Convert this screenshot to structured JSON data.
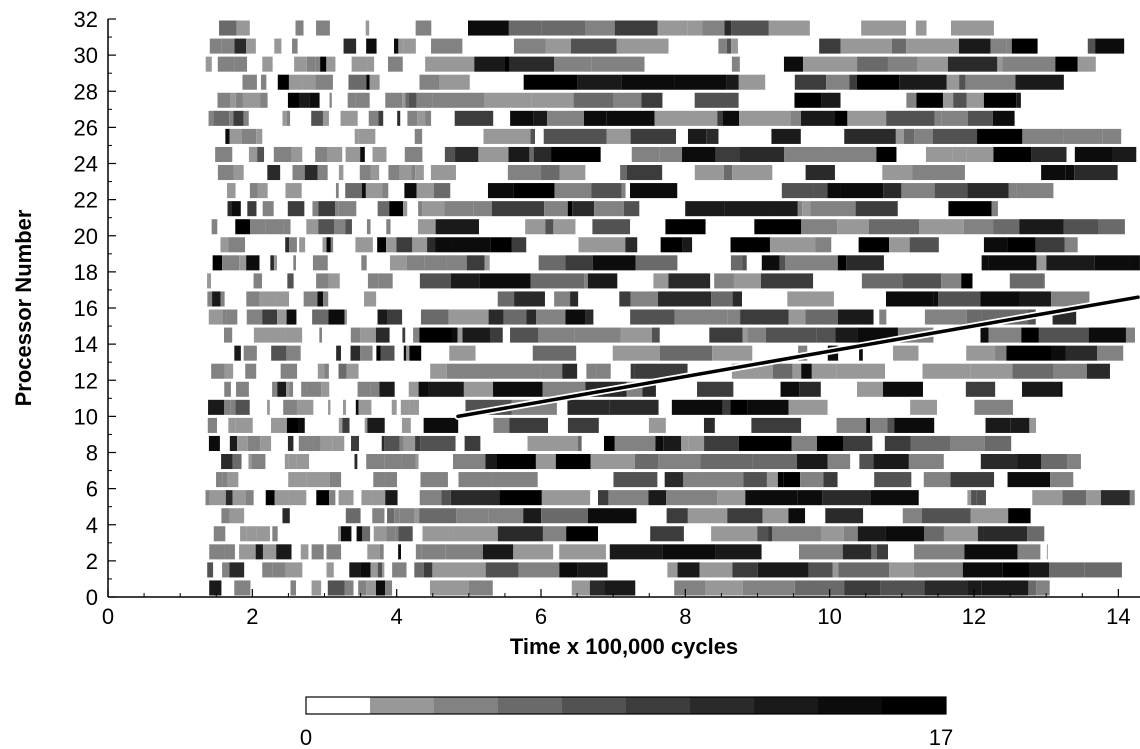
{
  "chart_data": {
    "type": "heatmap",
    "xlabel": "Time x 100,000 cycles",
    "ylabel": "Processor Number",
    "xlim": [
      0,
      14.3
    ],
    "ylim": [
      0,
      32
    ],
    "x_ticks": [
      0,
      2,
      4,
      6,
      8,
      10,
      12,
      14
    ],
    "y_ticks": [
      0,
      2,
      4,
      6,
      8,
      10,
      12,
      14,
      16,
      18,
      20,
      22,
      24,
      26,
      28,
      30,
      32
    ],
    "rows": 32,
    "row_data_start_time": 1.35,
    "row_data_end_time_range": [
      12.5,
      14.3
    ],
    "colorbar": {
      "min_label": "0",
      "max_label": "17",
      "min": 0,
      "max": 17,
      "num_colors": 10,
      "colors": [
        "#ffffff",
        "#989898",
        "#828282",
        "#6a6a6a",
        "#525252",
        "#3c3c3c",
        "#2a2a2a",
        "#1a1a1a",
        "#0c0c0c",
        "#000000"
      ]
    },
    "trend_line": {
      "start": {
        "x": 4.85,
        "y": 10
      },
      "end": {
        "x": 14.3,
        "y": 16.6
      }
    }
  }
}
